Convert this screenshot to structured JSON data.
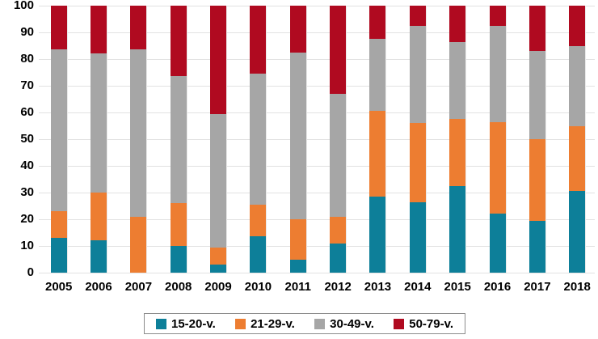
{
  "chart_data": {
    "type": "bar",
    "stacked": true,
    "title": "",
    "xlabel": "",
    "ylabel": "",
    "categories": [
      "2005",
      "2006",
      "2007",
      "2008",
      "2009",
      "2010",
      "2011",
      "2012",
      "2013",
      "2014",
      "2015",
      "2016",
      "2017",
      "2018"
    ],
    "series": [
      {
        "name": "15-20-v.",
        "color": "#0D7F99",
        "values": [
          13,
          12,
          0,
          10,
          3,
          13.5,
          5,
          11,
          28.5,
          26.5,
          32.5,
          22,
          19.5,
          30.5
        ]
      },
      {
        "name": "21-29-v.",
        "color": "#ED7D31",
        "values": [
          10,
          18,
          21,
          16,
          6.5,
          12,
          15,
          10,
          32,
          29.5,
          25,
          34.5,
          30.5,
          24.5
        ]
      },
      {
        "name": "30-49-v.",
        "color": "#A6A6A6",
        "values": [
          60.5,
          52,
          62.5,
          47.5,
          50,
          49,
          62.5,
          46,
          27,
          36.5,
          29,
          36,
          33,
          30
        ]
      },
      {
        "name": "50-79-v.",
        "color": "#B00A20",
        "values": [
          16.5,
          18,
          16.5,
          26.5,
          40.5,
          25.5,
          17.5,
          33,
          12.5,
          7.5,
          13.5,
          7.5,
          17,
          15
        ]
      }
    ],
    "ylim": [
      0,
      100
    ],
    "yticks": [
      0,
      10,
      20,
      30,
      40,
      50,
      60,
      70,
      80,
      90,
      100
    ],
    "grid": "horizontal-light",
    "legend_position": "bottom",
    "legend_items": [
      "15-20-v.",
      "21-29-v.",
      "30-49-v.",
      "50-79-v."
    ]
  }
}
